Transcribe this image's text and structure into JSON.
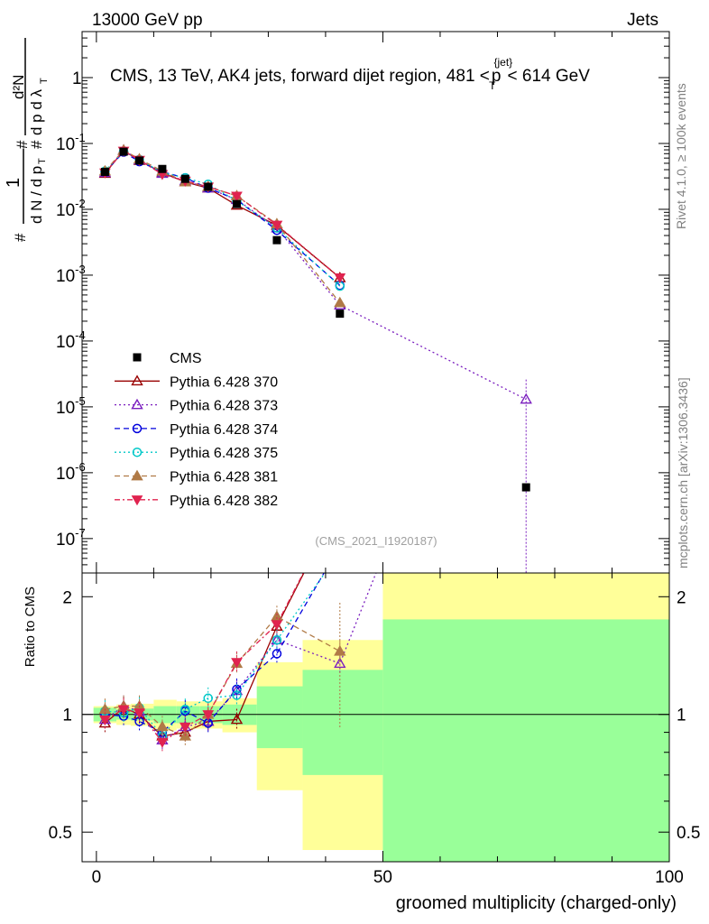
{
  "header": {
    "left": "13000 GeV pp",
    "right": "Jets"
  },
  "side_labels": {
    "rivet": "Rivet 4.1.0, ≥ 100k events",
    "mcplots": "mcplots.cern.ch [arXiv:1306.3436]"
  },
  "chart_data": {
    "type": "scatter",
    "title": "CMS, 13 TeV, AK4 jets, forward dijet region, 481 < p_T^{jet} < 614 GeV",
    "title_prefix": "CMS, 13 TeV, AK4 jets, forward dijet region, 481 <",
    "title_p": "p",
    "title_sub": "T",
    "title_sup": "{jet}",
    "title_suffix": "< 614 GeV",
    "analysis_tag": "(CMS_2021_I1920187)",
    "xlabel": "groomed multiplicity (charged-only)",
    "ylabel_main": "1/(dN/dp_T) d²N/(dp_T dλ)",
    "ylabel_ratio": "Ratio to CMS",
    "xlim": [
      -2.5,
      100
    ],
    "ylim_main": [
      3e-08,
      5
    ],
    "ylim_ratio": [
      0.42,
      2.3
    ],
    "x_ticks": [
      "0",
      "50",
      "100"
    ],
    "y_ticks_main": [
      {
        "v": 1,
        "label": "1",
        "exp": ""
      },
      {
        "v": 0.1,
        "label": "10",
        "exp": "-1"
      },
      {
        "v": 0.01,
        "label": "10",
        "exp": "-2"
      },
      {
        "v": 0.001,
        "label": "10",
        "exp": "-3"
      },
      {
        "v": 0.0001,
        "label": "10",
        "exp": "-4"
      },
      {
        "v": 1e-05,
        "label": "10",
        "exp": "-5"
      },
      {
        "v": 1e-06,
        "label": "10",
        "exp": "-6"
      },
      {
        "v": 1e-07,
        "label": "10",
        "exp": "-7"
      }
    ],
    "y_ticks_ratio": [
      {
        "v": 0.5,
        "label": "0.5"
      },
      {
        "v": 1,
        "label": "1"
      },
      {
        "v": 2,
        "label": "2"
      }
    ],
    "bins": [
      {
        "lo": -0.5,
        "hi": 3.5
      },
      {
        "lo": 3.5,
        "hi": 6
      },
      {
        "lo": 6,
        "hi": 10
      },
      {
        "lo": 10,
        "hi": 14
      },
      {
        "lo": 14,
        "hi": 18
      },
      {
        "lo": 18,
        "hi": 22
      },
      {
        "lo": 22,
        "hi": 28
      },
      {
        "lo": 28,
        "hi": 36
      },
      {
        "lo": 36,
        "hi": 50
      },
      {
        "lo": 50,
        "hi": 100
      }
    ],
    "x": [
      1.5,
      4.75,
      7.5,
      11.5,
      15.5,
      19.5,
      24.5,
      31.5,
      42.5,
      75
    ],
    "data": {
      "name": "CMS",
      "color": "#000000",
      "values": [
        0.037,
        0.075,
        0.055,
        0.041,
        0.029,
        0.022,
        0.012,
        0.0034,
        0.00026,
        6e-07
      ],
      "band_stat": [
        0.04,
        0.03,
        0.035,
        0.05,
        0.05,
        0.05,
        0.06,
        0.18,
        0.3,
        0.75
      ],
      "band_total": [
        0.05,
        0.06,
        0.065,
        0.09,
        0.08,
        0.08,
        0.1,
        0.36,
        0.55,
        1.6
      ]
    },
    "series": [
      {
        "name": "Pythia 6.428 370",
        "color": "#990000",
        "marker": "triangle-open",
        "dash": "",
        "values": [
          0.035,
          0.078,
          0.055,
          0.036,
          0.026,
          0.021,
          0.0115,
          0.0057,
          0.00091,
          null
        ],
        "ratio": [
          0.95,
          1.04,
          1.0,
          0.88,
          0.9,
          0.96,
          0.97,
          1.68,
          3.5,
          null
        ]
      },
      {
        "name": "Pythia 6.428 373",
        "color": "#7b1fbf",
        "marker": "triangle-open",
        "dash": "2,3",
        "values": [
          0.036,
          0.079,
          0.056,
          0.035,
          0.027,
          0.021,
          0.014,
          0.0052,
          0.00035,
          1.3e-05
        ],
        "ratio": [
          0.97,
          1.05,
          1.02,
          0.86,
          0.93,
          0.96,
          1.15,
          1.55,
          1.35,
          21
        ]
      },
      {
        "name": "Pythia 6.428 374",
        "color": "#0000dd",
        "marker": "circle-open",
        "dash": "6,4",
        "values": [
          0.037,
          0.074,
          0.053,
          0.037,
          0.03,
          0.021,
          0.014,
          0.0048,
          0.0007,
          null
        ],
        "ratio": [
          1.0,
          0.99,
          0.96,
          0.9,
          1.02,
          0.95,
          1.16,
          1.43,
          2.7,
          null
        ]
      },
      {
        "name": "Pythia 6.428 375",
        "color": "#00c8c8",
        "marker": "circle-open",
        "dash": "2,3",
        "values": [
          0.038,
          0.076,
          0.057,
          0.036,
          0.03,
          0.024,
          0.0135,
          0.0052,
          0.00068,
          null
        ],
        "ratio": [
          1.02,
          1.01,
          1.04,
          0.88,
          1.03,
          1.1,
          1.12,
          1.55,
          2.6,
          null
        ]
      },
      {
        "name": "Pythia 6.428 381",
        "color": "#b07a46",
        "marker": "triangle-filled",
        "dash": "6,4",
        "values": [
          0.038,
          0.079,
          0.058,
          0.038,
          0.026,
          0.022,
          0.016,
          0.006,
          0.00038,
          null
        ],
        "ratio": [
          1.03,
          1.05,
          1.05,
          0.93,
          0.88,
          1.0,
          1.35,
          1.78,
          1.45,
          null
        ]
      },
      {
        "name": "Pythia 6.428 382",
        "color": "#e0234f",
        "marker": "triangle-down-filled",
        "dash": "6,3,2,3",
        "values": [
          0.036,
          0.077,
          0.056,
          0.034,
          0.027,
          0.022,
          0.016,
          0.0058,
          0.00092,
          null
        ],
        "ratio": [
          0.97,
          1.03,
          1.01,
          0.85,
          0.93,
          1.0,
          1.36,
          1.7,
          3.5,
          null
        ]
      }
    ]
  }
}
